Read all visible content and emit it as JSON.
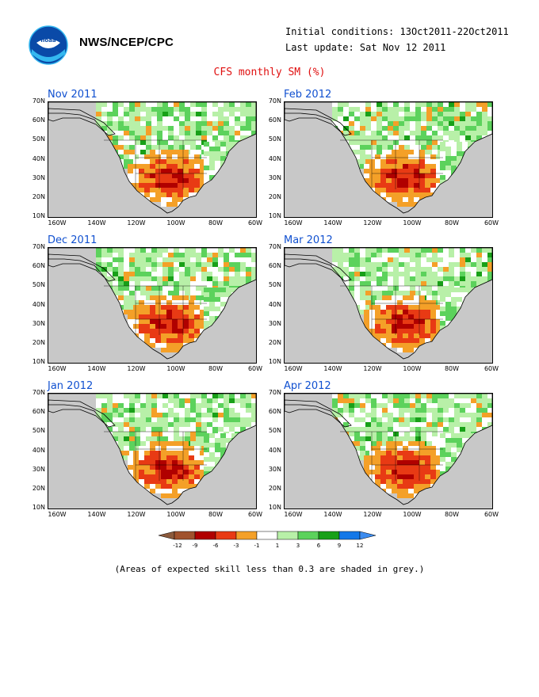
{
  "header": {
    "org": "NWS/NCEP/CPC",
    "initial_conditions": "Initial conditions: 13Oct2011-22Oct2011",
    "last_update": "Last update: Sat Nov 12 2011",
    "title": "CFS monthly SM (%)",
    "logo_icon": "noaa-logo"
  },
  "panels": [
    {
      "title": "Nov 2011"
    },
    {
      "title": "Feb 2012"
    },
    {
      "title": "Dec 2011"
    },
    {
      "title": "Mar 2012"
    },
    {
      "title": "Jan 2012"
    },
    {
      "title": "Apr 2012"
    }
  ],
  "axes": {
    "lat_labels": [
      "70N",
      "60N",
      "50N",
      "40N",
      "30N",
      "20N",
      "10N"
    ],
    "lon_labels": [
      "160W",
      "140W",
      "120W",
      "100W",
      "80W",
      "60W"
    ]
  },
  "legend": {
    "labels": [
      "-12",
      "-9",
      "-6",
      "-3",
      "-1",
      "1",
      "3",
      "6",
      "9",
      "12"
    ],
    "colors": [
      "#8b5a3c",
      "#a0522d",
      "#b00000",
      "#e83a14",
      "#f4a028",
      "#ffffff",
      "#b8f0a8",
      "#5cd25c",
      "#18a018",
      "#1478e8",
      "#3c8cf0"
    ]
  },
  "footer": {
    "note": "(Areas of expected skill less than 0.3 are shaded in grey.)"
  },
  "colors": {
    "background": "#ffffff",
    "grey_mask": "#c8c8c8",
    "title_red": "#e01010",
    "panel_title_blue": "#1050d0"
  }
}
